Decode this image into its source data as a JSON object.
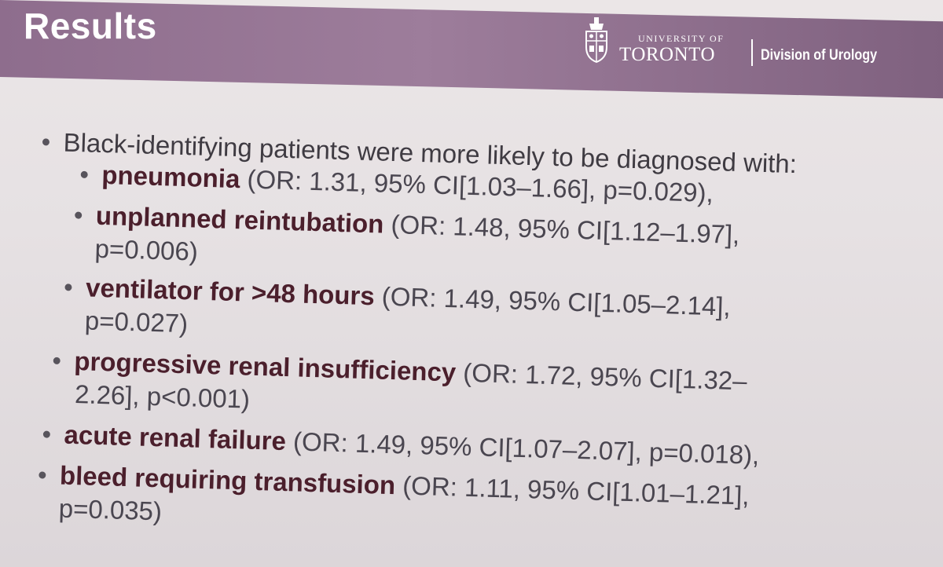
{
  "slide": {
    "title": "Results",
    "logo": {
      "university_small": "UNIVERSITY OF",
      "university_big": "TORONTO",
      "division": "Division of Urology",
      "icon": "crest-icon"
    },
    "colors": {
      "banner": "#9a7a98",
      "background": "#e8e3e5",
      "term": "#4b1f2c",
      "text": "#46424a"
    },
    "intro_bullet": "Black-identifying patients were more likely to be diagnosed with:",
    "items": [
      {
        "term": "pneumonia",
        "stat": " (OR: 1.31, 95% CI[1.03–1.66], p=0.029),",
        "stat_cont": ""
      },
      {
        "term": "unplanned reintubation",
        "stat": " (OR: 1.48, 95% CI[1.12–1.97],",
        "stat_cont": "p=0.006)"
      },
      {
        "term": "ventilator for >48 hours",
        "stat": " (OR: 1.49, 95% CI[1.05–2.14],",
        "stat_cont": "p=0.027)"
      },
      {
        "term": "progressive renal insufficiency",
        "stat": " (OR: 1.72, 95% CI[1.32–",
        "stat_cont": "2.26], p<0.001)"
      },
      {
        "term": "acute renal failure",
        "stat": " (OR: 1.49, 95% CI[1.07–2.07], p=0.018),",
        "stat_cont": ""
      },
      {
        "term": "bleed requiring transfusion",
        "stat": " (OR: 1.11, 95% CI[1.01–1.21],",
        "stat_cont": "p=0.035)"
      }
    ]
  }
}
